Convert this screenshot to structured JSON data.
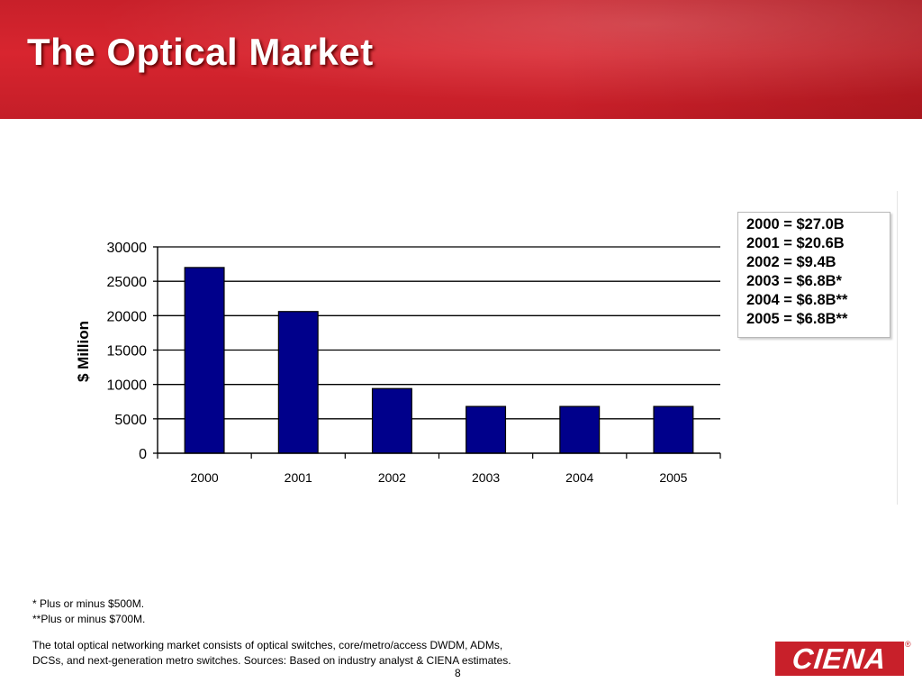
{
  "header": {
    "title": "The Optical Market"
  },
  "chart_data": {
    "type": "bar",
    "categories": [
      "2000",
      "2001",
      "2002",
      "2003",
      "2004",
      "2005"
    ],
    "values": [
      27000,
      20600,
      9400,
      6800,
      6800,
      6800
    ],
    "ylabel": "$ Million",
    "ylim": [
      0,
      30000
    ],
    "yticks": [
      0,
      5000,
      10000,
      15000,
      20000,
      25000,
      30000
    ],
    "grid": true,
    "bar_color": "#00008b",
    "legend_lines": [
      "2000 = $27.0B",
      "2001 = $20.6B",
      "2002 = $9.4B",
      "2003 = $6.8B*",
      "2004 = $6.8B**",
      "2005 = $6.8B**"
    ]
  },
  "footnotes": {
    "note1": "* Plus or minus $500M.",
    "note2": "**Plus or minus $700M.",
    "description_line1": "The total optical networking market consists of optical switches, core/metro/access DWDM, ADMs,",
    "description_line2": "DCSs, and next-generation metro switches.  Sources:  Based on industry analyst & CIENA estimates."
  },
  "page_number": "8",
  "logo": {
    "text": "CIENA",
    "mark": "®",
    "color": "#c8202a"
  }
}
